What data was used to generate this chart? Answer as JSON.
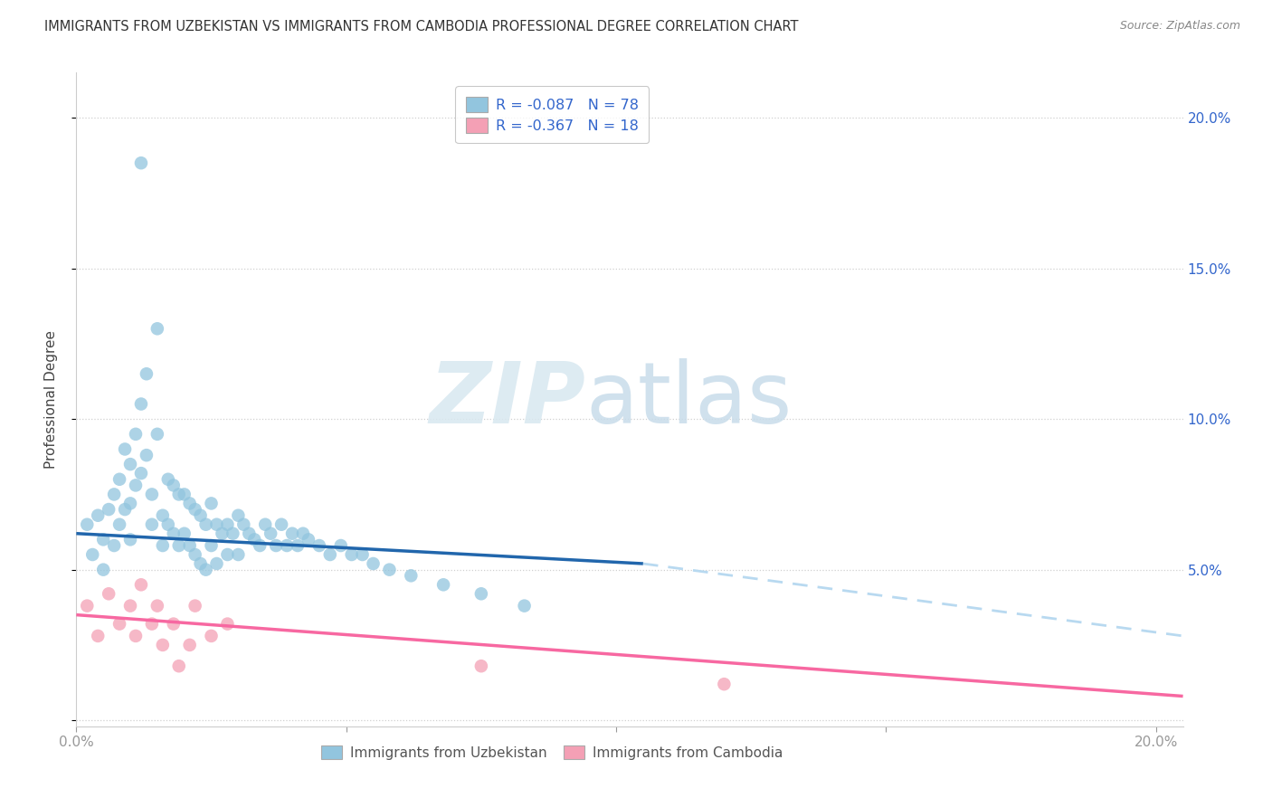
{
  "title": "IMMIGRANTS FROM UZBEKISTAN VS IMMIGRANTS FROM CAMBODIA PROFESSIONAL DEGREE CORRELATION CHART",
  "source": "Source: ZipAtlas.com",
  "ylabel": "Professional Degree",
  "xlim": [
    0.0,
    0.205
  ],
  "ylim": [
    -0.002,
    0.215
  ],
  "color_uzbekistan": "#92c5de",
  "color_cambodia": "#f4a0b5",
  "line_color_uzbekistan": "#2166ac",
  "line_color_cambodia": "#f768a1",
  "line_color_dashed": "#b8d9f0",
  "background_color": "#ffffff",
  "watermark_zip": "ZIP",
  "watermark_atlas": "atlas",
  "legend1_label": "R = -0.087   N = 78",
  "legend2_label": "R = -0.367   N = 18",
  "uzbekistan_x": [
    0.002,
    0.003,
    0.004,
    0.005,
    0.005,
    0.006,
    0.007,
    0.007,
    0.008,
    0.008,
    0.009,
    0.009,
    0.01,
    0.01,
    0.01,
    0.011,
    0.011,
    0.012,
    0.012,
    0.013,
    0.013,
    0.014,
    0.014,
    0.015,
    0.015,
    0.016,
    0.016,
    0.017,
    0.017,
    0.018,
    0.018,
    0.019,
    0.019,
    0.02,
    0.02,
    0.021,
    0.021,
    0.022,
    0.022,
    0.023,
    0.023,
    0.024,
    0.024,
    0.025,
    0.025,
    0.026,
    0.026,
    0.027,
    0.028,
    0.028,
    0.029,
    0.03,
    0.03,
    0.031,
    0.032,
    0.033,
    0.034,
    0.035,
    0.036,
    0.037,
    0.038,
    0.039,
    0.04,
    0.041,
    0.042,
    0.043,
    0.045,
    0.047,
    0.049,
    0.051,
    0.053,
    0.055,
    0.058,
    0.062,
    0.068,
    0.075,
    0.083,
    0.012
  ],
  "uzbekistan_y": [
    0.065,
    0.055,
    0.068,
    0.06,
    0.05,
    0.07,
    0.075,
    0.058,
    0.08,
    0.065,
    0.09,
    0.07,
    0.085,
    0.072,
    0.06,
    0.095,
    0.078,
    0.105,
    0.082,
    0.115,
    0.088,
    0.075,
    0.065,
    0.13,
    0.095,
    0.068,
    0.058,
    0.08,
    0.065,
    0.078,
    0.062,
    0.075,
    0.058,
    0.075,
    0.062,
    0.072,
    0.058,
    0.07,
    0.055,
    0.068,
    0.052,
    0.065,
    0.05,
    0.072,
    0.058,
    0.065,
    0.052,
    0.062,
    0.065,
    0.055,
    0.062,
    0.068,
    0.055,
    0.065,
    0.062,
    0.06,
    0.058,
    0.065,
    0.062,
    0.058,
    0.065,
    0.058,
    0.062,
    0.058,
    0.062,
    0.06,
    0.058,
    0.055,
    0.058,
    0.055,
    0.055,
    0.052,
    0.05,
    0.048,
    0.045,
    0.042,
    0.038,
    0.185
  ],
  "cambodia_x": [
    0.002,
    0.004,
    0.006,
    0.008,
    0.01,
    0.011,
    0.012,
    0.014,
    0.015,
    0.016,
    0.018,
    0.019,
    0.021,
    0.022,
    0.025,
    0.028,
    0.075,
    0.12
  ],
  "cambodia_y": [
    0.038,
    0.028,
    0.042,
    0.032,
    0.038,
    0.028,
    0.045,
    0.032,
    0.038,
    0.025,
    0.032,
    0.018,
    0.025,
    0.038,
    0.028,
    0.032,
    0.018,
    0.012
  ],
  "blue_line_x_start": 0.0,
  "blue_line_x_solid_end": 0.105,
  "blue_line_x_end": 0.205,
  "blue_line_y_start": 0.062,
  "blue_line_y_solid_end": 0.052,
  "blue_line_y_end": 0.028,
  "pink_line_x_start": 0.0,
  "pink_line_x_end": 0.205,
  "pink_line_y_start": 0.035,
  "pink_line_y_end": 0.008
}
